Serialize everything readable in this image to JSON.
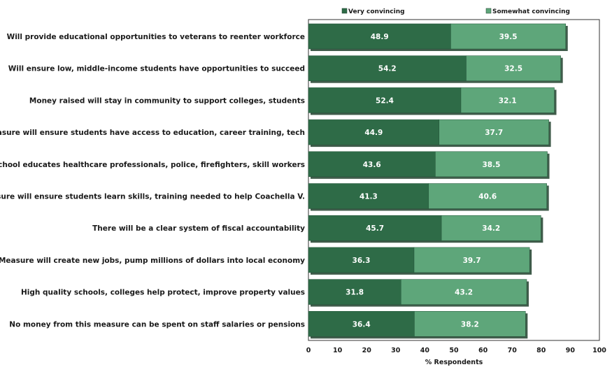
{
  "chart_data": {
    "type": "bar",
    "orientation": "horizontal",
    "stacked": true,
    "categories": [
      "Will provide educational opportunities to veterans to reenter workforce",
      "Will ensure low, middle-income students have opportunities to succeed",
      "Money raised will stay in community to support colleges, students",
      "Measure will ensure students have access to education, career training, tech",
      "School educates healthcare professionals, police, firefighters, skill workers",
      "Measure will ensure students learn skills, training needed to help Coachella V.",
      "There will be a clear system of fiscal accountability",
      "Measure will create new jobs, pump millions of dollars into local economy",
      "High quality schools, colleges help protect, improve property values",
      "No money from this measure can be spent on staff salaries or pensions"
    ],
    "series": [
      {
        "name": "Very convincing",
        "color": "#2e6b47",
        "values": [
          48.9,
          54.2,
          52.4,
          44.9,
          43.6,
          41.3,
          45.7,
          36.3,
          31.8,
          36.4
        ]
      },
      {
        "name": "Somewhat convincing",
        "color": "#5ea67a",
        "values": [
          39.5,
          32.5,
          32.1,
          37.7,
          38.5,
          40.6,
          34.2,
          39.7,
          43.2,
          38.2
        ]
      }
    ],
    "xlabel": "% Respondents",
    "xlim": [
      0,
      100
    ],
    "xticks": [
      "0",
      "10",
      "20",
      "30",
      "40",
      "50",
      "60",
      "70",
      "80",
      "90",
      "100"
    ],
    "legend_position": "top",
    "grid": false
  }
}
